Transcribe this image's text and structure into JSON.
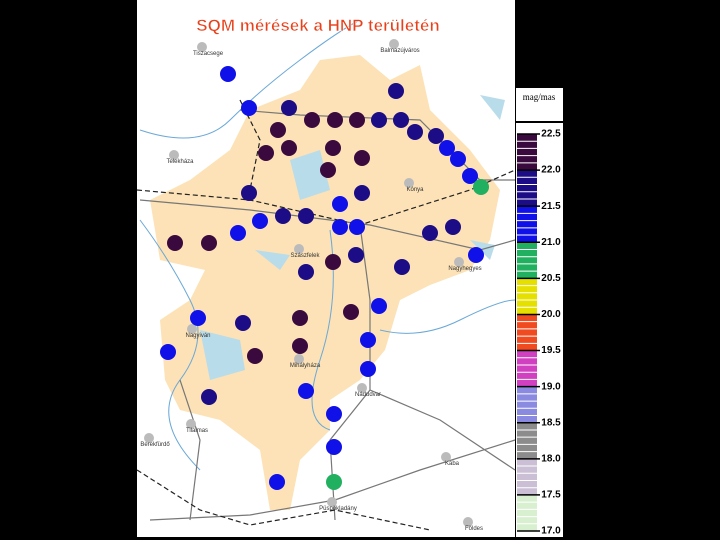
{
  "title": "SQM mérések a HNP területén",
  "unit": "mag/mas",
  "colorbar": {
    "range": [
      17.0,
      22.5
    ],
    "ticks": [
      {
        "value": 17.0,
        "label": "17.0"
      },
      17.5,
      {
        "value": 18.0,
        "label": "18.0"
      },
      18.5,
      {
        "value": 19.0,
        "label": "19.0"
      },
      19.5,
      {
        "value": 20.0,
        "label": "20.0"
      },
      20.5,
      {
        "value": 21.0,
        "label": "21.0"
      },
      21.5,
      {
        "value": 22.0,
        "label": "22.0"
      },
      22.5
    ],
    "colors": [
      "#d8f0d0",
      "#cbbfd6",
      "#8c8c8c",
      "#8a8ae0",
      "#d040c0",
      "#f04a20",
      "#e6e000",
      "#20b060",
      "#1010e8",
      "#1c0c86",
      "#3a0a3e"
    ]
  },
  "towns": [
    "Tiszacsege",
    "Telekháza",
    "Kónya",
    "Szászfelek",
    "Nagyhegyes",
    "Nagyiván",
    "Mihályháza",
    "Nádudvar",
    "Tilalmas",
    "Berekfürdő",
    "Kaba",
    "Püspökladány",
    "Földes",
    "Balmazújváros"
  ],
  "points": [
    21.3,
    21.2,
    21.7,
    22.1,
    22.1,
    22.1,
    21.7,
    21.7,
    21.7,
    21.7,
    21.6,
    21.4,
    21.3,
    21.2,
    20.8,
    22.1,
    22.1,
    22.1,
    22.1,
    22.1,
    22.1,
    21.7,
    21.4,
    21.6,
    21.3,
    21.7,
    21.7,
    21.4,
    21.2,
    21.3,
    21.7,
    21.7,
    21.2,
    22.1,
    22.1,
    21.7,
    21.7,
    22.1,
    21.7,
    21.4,
    22.1,
    22.1,
    21.7,
    21.2,
    21.4,
    22.1,
    22.1,
    21.3,
    21.2,
    21.3,
    21.6,
    21.3,
    21.3,
    21.3,
    20.8
  ]
}
